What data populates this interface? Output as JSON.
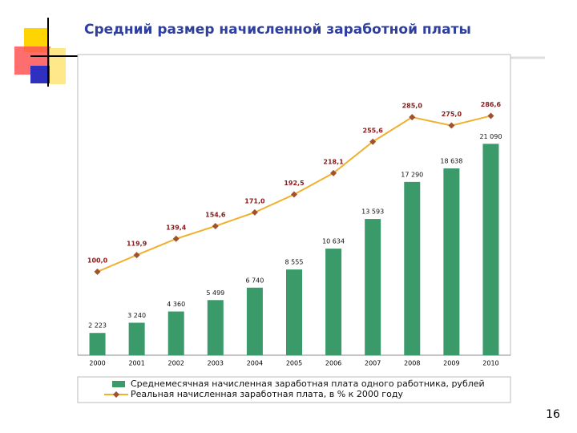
{
  "chart_data": {
    "type": "bar_line",
    "title": "Средний размер начисленной заработной платы",
    "categories": [
      "2000",
      "2001",
      "2002",
      "2003",
      "2004",
      "2005",
      "2006",
      "2007",
      "2008",
      "2009",
      "2010"
    ],
    "ylim": [
      0,
      30000
    ],
    "y2lim": [
      0,
      360
    ],
    "series": [
      {
        "name": "Среднемесячная начисленная заработная плата одного работника, рублей",
        "type": "bar",
        "color": "#3a9a6a",
        "values": [
          2223,
          3240,
          4360,
          5499,
          6740,
          8555,
          10634,
          13593,
          17290,
          18638,
          21090
        ],
        "value_labels": [
          "2 223",
          "3 240",
          "4 360",
          "5 499",
          "6 740",
          "8 555",
          "10 634",
          "13 593",
          "17 290",
          "18 638",
          "21 090"
        ]
      },
      {
        "name": "Реальная начисленная заработная плата, в % к 2000 году",
        "type": "line",
        "axis": "y2",
        "color": "#f0b030",
        "marker_color": "#a0522d",
        "values": [
          100.0,
          119.9,
          139.4,
          154.6,
          171.0,
          192.5,
          218.1,
          255.6,
          285.0,
          275.0,
          286.6
        ],
        "value_labels": [
          "100,0",
          "119,9",
          "139,4",
          "154,6",
          "171,0",
          "192,5",
          "218,1",
          "255,6",
          "285,0",
          "275,0",
          "286,6"
        ]
      }
    ],
    "page_number": "16"
  }
}
